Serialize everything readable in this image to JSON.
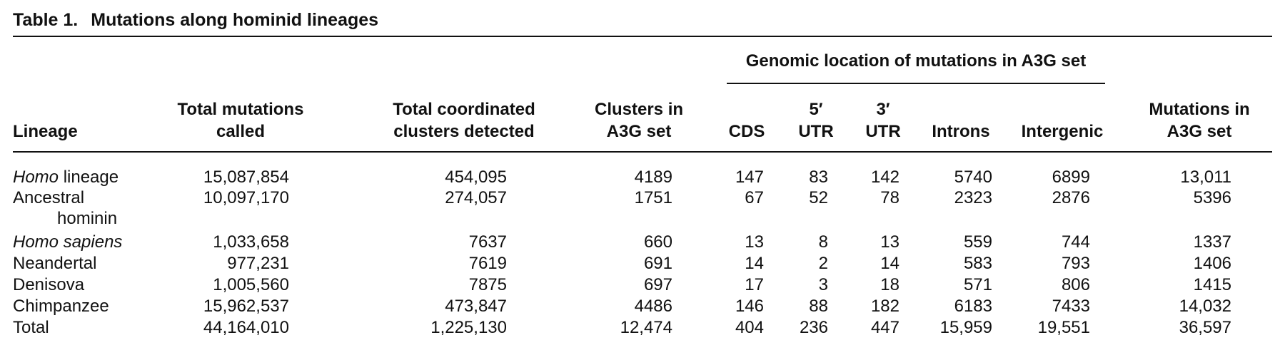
{
  "caption": {
    "number": "Table 1.",
    "title": "Mutations along hominid lineages"
  },
  "span_header": "Genomic location of mutations in A3G set",
  "headers": {
    "lineage": "Lineage",
    "total_mutations": [
      "Total mutations",
      "called"
    ],
    "total_clusters": [
      "Total coordinated",
      "clusters detected"
    ],
    "clusters_a3g": [
      "Clusters in",
      "A3G set"
    ],
    "cds": "CDS",
    "utr5": [
      "5′",
      "UTR"
    ],
    "utr3": [
      "3′",
      "UTR"
    ],
    "introns": "Introns",
    "intergenic": "Intergenic",
    "mutations_a3g": [
      "Mutations in",
      "A3G set"
    ]
  },
  "rows": [
    {
      "lineage_italic": "Homo",
      "lineage_rest": " lineage",
      "lineage_sub": "",
      "values": [
        "15,087,854",
        "454,095",
        "4189",
        "147",
        "83",
        "142",
        "5740",
        "6899",
        "13,011"
      ]
    },
    {
      "lineage_italic": "",
      "lineage_rest": "Ancestral",
      "lineage_sub": "hominin",
      "values": [
        "10,097,170",
        "274,057",
        "1751",
        "67",
        "52",
        "78",
        "2323",
        "2876",
        "5396"
      ]
    },
    {
      "lineage_italic": "Homo sapiens",
      "lineage_rest": "",
      "lineage_sub": "",
      "values": [
        "1,033,658",
        "7637",
        "660",
        "13",
        "8",
        "13",
        "559",
        "744",
        "1337"
      ]
    },
    {
      "lineage_italic": "",
      "lineage_rest": "Neandertal",
      "lineage_sub": "",
      "values": [
        "977,231",
        "7619",
        "691",
        "14",
        "2",
        "14",
        "583",
        "793",
        "1406"
      ]
    },
    {
      "lineage_italic": "",
      "lineage_rest": "Denisova",
      "lineage_sub": "",
      "values": [
        "1,005,560",
        "7875",
        "697",
        "17",
        "3",
        "18",
        "571",
        "806",
        "1415"
      ]
    },
    {
      "lineage_italic": "",
      "lineage_rest": "Chimpanzee",
      "lineage_sub": "",
      "values": [
        "15,962,537",
        "473,847",
        "4486",
        "146",
        "88",
        "182",
        "6183",
        "7433",
        "14,032"
      ]
    },
    {
      "lineage_italic": "",
      "lineage_rest": "Total",
      "lineage_sub": "",
      "values": [
        "44,164,010",
        "1,225,130",
        "12,474",
        "404",
        "236",
        "447",
        "15,959",
        "19,551",
        "36,597"
      ]
    }
  ]
}
